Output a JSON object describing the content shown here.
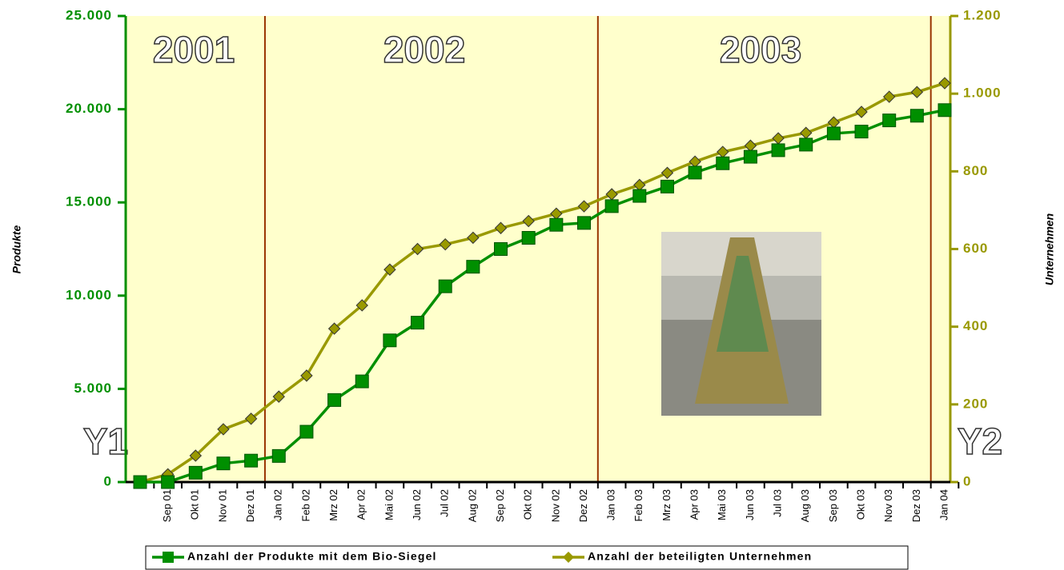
{
  "chart_data": {
    "type": "line",
    "categories": [
      null,
      "Sep 01",
      "Okt 01",
      "Nov 01",
      "Dez 01",
      "Jan 02",
      "Feb 02",
      "Mrz 02",
      "Apr 02",
      "Mai 02",
      "Jun 02",
      "Jul 02",
      "Aug 02",
      "Sep 02",
      "Okt 02",
      "Nov 02",
      "Dez 02",
      "Jan 03",
      "Feb 03",
      "Mrz 03",
      "Apr 03",
      "Mai 03",
      "Jun 03",
      "Jul 03",
      "Aug 03",
      "Sep 03",
      "Okt 03",
      "Nov 03",
      "Dez 03",
      "Jan 04"
    ],
    "series": [
      {
        "name": "Anzahl der Produkte mit dem Bio-Siegel",
        "color": "#008f00",
        "values": [
          0,
          0,
          500,
          1000,
          1150,
          1400,
          2700,
          4400,
          5400,
          7600,
          8550,
          10500,
          11550,
          12500,
          13100,
          13800,
          13900,
          14800,
          15350,
          15850,
          16600,
          17100,
          17450,
          17800,
          18100,
          18700,
          18800,
          19400,
          19650,
          19950
        ]
      },
      {
        "name": "Anzahl der beteiligten Unternehmen",
        "color": "#999900",
        "axis": "y2",
        "values": [
          0,
          20,
          68,
          136,
          163,
          220,
          274,
          395,
          455,
          547,
          600,
          612,
          629,
          654,
          672,
          691,
          710,
          741,
          765,
          796,
          825,
          850,
          866,
          885,
          899,
          926,
          953,
          992,
          1004,
          1027
        ]
      }
    ],
    "ylabel": "Produkte",
    "y2label": "Unternehmen",
    "ylim": [
      0,
      25000
    ],
    "yticks": [
      0,
      {
        "value": 5000,
        "label": "5.000"
      },
      {
        "value": 10000,
        "label": "10.000"
      },
      {
        "value": 15000,
        "label": "15.000"
      },
      {
        "value": 20000,
        "label": "20.000"
      },
      {
        "value": 25000,
        "label": "25.000"
      }
    ],
    "y2lim": [
      0,
      1200
    ],
    "y2ticks": [
      0,
      200,
      400,
      600,
      800,
      {
        "value": 1000,
        "label": "1.000"
      },
      {
        "value": 1200,
        "label": "1.200"
      }
    ],
    "annotations": [
      "2001",
      "2002",
      "2003",
      "Y1",
      "Y2"
    ],
    "legend": "bottom"
  }
}
